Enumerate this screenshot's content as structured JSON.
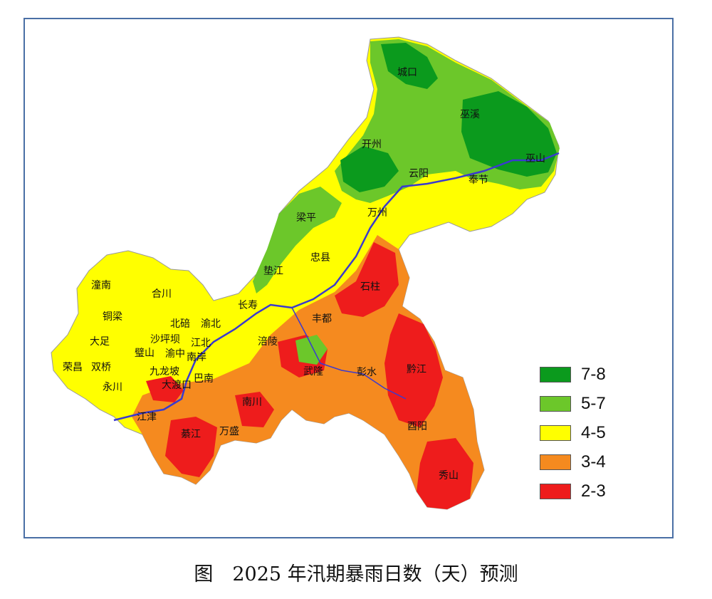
{
  "caption": "图　2025 年汛期暴雨日数（天）预测",
  "legend": [
    {
      "label": "7-8",
      "color": "#0b9a1d"
    },
    {
      "label": "5-7",
      "color": "#6cc72a"
    },
    {
      "label": "4-5",
      "color": "#ffff00"
    },
    {
      "label": "3-4",
      "color": "#f58a1f"
    },
    {
      "label": "2-3",
      "color": "#ee1c1c"
    }
  ],
  "places": [
    "城口",
    "巫溪",
    "开州",
    "巫山",
    "云阳",
    "奉节",
    "梁平",
    "万州",
    "忠县",
    "垫江",
    "石柱",
    "长寿",
    "丰都",
    "潼南",
    "合川",
    "铜梁",
    "北碚",
    "渝北",
    "大足",
    "沙坪坝",
    "江北",
    "璧山",
    "渝中",
    "南岸",
    "荣昌",
    "双桥",
    "九龙坡",
    "巴南",
    "永川",
    "大渡口",
    "涪陵",
    "武隆",
    "彭水",
    "黔江",
    "江津",
    "南川",
    "綦江",
    "万盛",
    "酉阳",
    "秀山"
  ],
  "colors": {
    "river": "#3a3acf",
    "county_border": "#d8c8a0",
    "frame": "#4a6fa5"
  }
}
